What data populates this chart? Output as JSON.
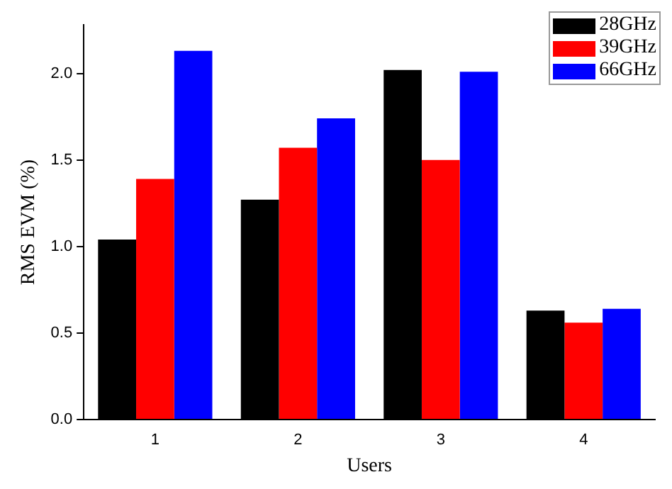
{
  "chart_data": {
    "type": "bar",
    "xlabel": "Users",
    "ylabel": "RMS EVM (%)",
    "categories": [
      "1",
      "2",
      "3",
      "4"
    ],
    "series": [
      {
        "name": "28GHz",
        "color": "#000000",
        "values": [
          1.04,
          1.27,
          2.02,
          0.63
        ]
      },
      {
        "name": "39GHz",
        "color": "#ff0000",
        "values": [
          1.39,
          1.57,
          1.5,
          0.56
        ]
      },
      {
        "name": "66GHz",
        "color": "#0000ff",
        "values": [
          2.13,
          1.74,
          2.01,
          0.64
        ]
      }
    ],
    "ylim": [
      0,
      2.28
    ],
    "yticks": [
      {
        "value": 0,
        "label": "0.0"
      },
      {
        "value": 0.5,
        "label": "0.5"
      },
      {
        "value": 1,
        "label": "1.0"
      },
      {
        "value": 1.5,
        "label": "1.5"
      },
      {
        "value": 2,
        "label": "2.0"
      }
    ],
    "grid": false,
    "legend": "top right"
  }
}
